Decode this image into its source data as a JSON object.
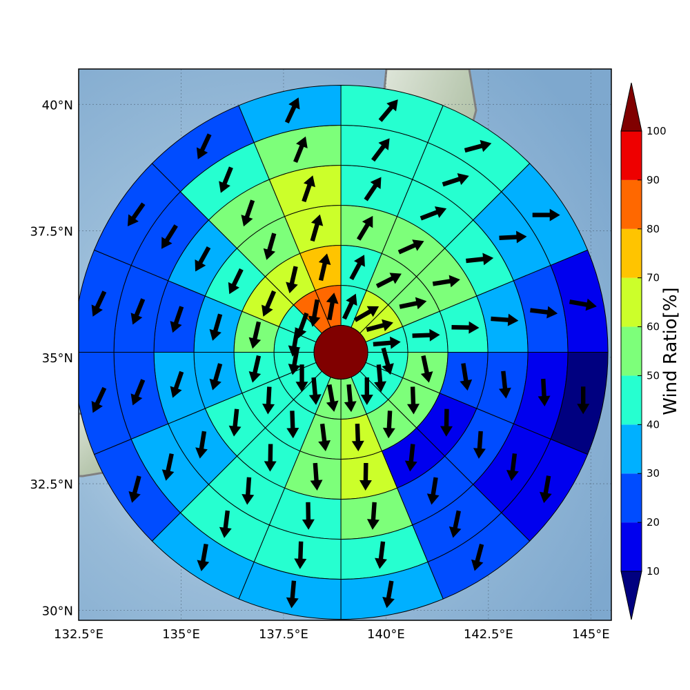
{
  "chart_data": {
    "type": "heatmap",
    "subtype": "polar sector wind-ratio map with direction arrows",
    "title": "",
    "x_axis": {
      "unit": "degrees longitude",
      "ticks": [
        132.5,
        135.0,
        137.5,
        140.0,
        142.5,
        145.0
      ],
      "tick_labels": [
        "132.5°E",
        "135°E",
        "137.5°E",
        "140°E",
        "142.5°E",
        "145°E"
      ],
      "range": [
        132.5,
        145.5
      ]
    },
    "y_axis": {
      "unit": "degrees latitude",
      "ticks": [
        30.0,
        32.5,
        35.0,
        37.5,
        40.0
      ],
      "tick_labels": [
        "30°N",
        "32.5°N",
        "35°N",
        "37.5°N",
        "40°N"
      ],
      "range": [
        29.8,
        40.7
      ]
    },
    "grid": true,
    "basemap": "shaded relief with coastlines",
    "center": {
      "lon": 138.9,
      "lat": 35.1,
      "value": 100
    },
    "ring_count": 6,
    "sector_count": 16,
    "sector_order": "clockwise from north, sector 0 = north to north-northeast",
    "ratio_rings": [
      [
        40,
        60,
        60,
        40,
        40,
        40,
        40,
        50,
        50,
        40,
        40,
        40,
        40,
        40,
        80,
        80
      ],
      [
        40,
        50,
        50,
        40,
        50,
        50,
        50,
        60,
        50,
        40,
        40,
        40,
        50,
        60,
        60,
        70
      ],
      [
        50,
        50,
        50,
        40,
        20,
        10,
        10,
        60,
        50,
        40,
        40,
        30,
        30,
        40,
        50,
        60
      ],
      [
        40,
        40,
        40,
        30,
        20,
        20,
        20,
        50,
        40,
        40,
        30,
        30,
        20,
        30,
        50,
        60
      ],
      [
        40,
        40,
        30,
        20,
        10,
        10,
        20,
        40,
        40,
        40,
        30,
        20,
        20,
        20,
        40,
        50
      ],
      [
        40,
        40,
        30,
        10,
        0,
        10,
        20,
        30,
        30,
        30,
        20,
        20,
        20,
        20,
        20,
        30
      ]
    ],
    "arrow_direction_deg": [
      25,
      60,
      75,
      85,
      165,
      175,
      180,
      175,
      170,
      175,
      180,
      190,
      190,
      200,
      190,
      10
    ],
    "colorbar": {
      "label": "Wind Ratio[%]",
      "ticks": [
        10,
        20,
        30,
        40,
        50,
        60,
        70,
        80,
        90,
        100
      ],
      "extend": "both",
      "levels": [
        {
          "min": 0,
          "max": 10,
          "color": "#000080"
        },
        {
          "min": 10,
          "max": 20,
          "color": "#0000ee"
        },
        {
          "min": 20,
          "max": 30,
          "color": "#004cff"
        },
        {
          "min": 30,
          "max": 40,
          "color": "#00b0ff"
        },
        {
          "min": 40,
          "max": 50,
          "color": "#26ffd0"
        },
        {
          "min": 50,
          "max": 60,
          "color": "#7dff7a"
        },
        {
          "min": 60,
          "max": 70,
          "color": "#ccff2a"
        },
        {
          "min": 70,
          "max": 80,
          "color": "#ffc400"
        },
        {
          "min": 80,
          "max": 90,
          "color": "#ff6800"
        },
        {
          "min": 90,
          "max": 100,
          "color": "#ee0000"
        },
        {
          "min": 100,
          "max": 110,
          "color": "#800000"
        }
      ]
    }
  }
}
